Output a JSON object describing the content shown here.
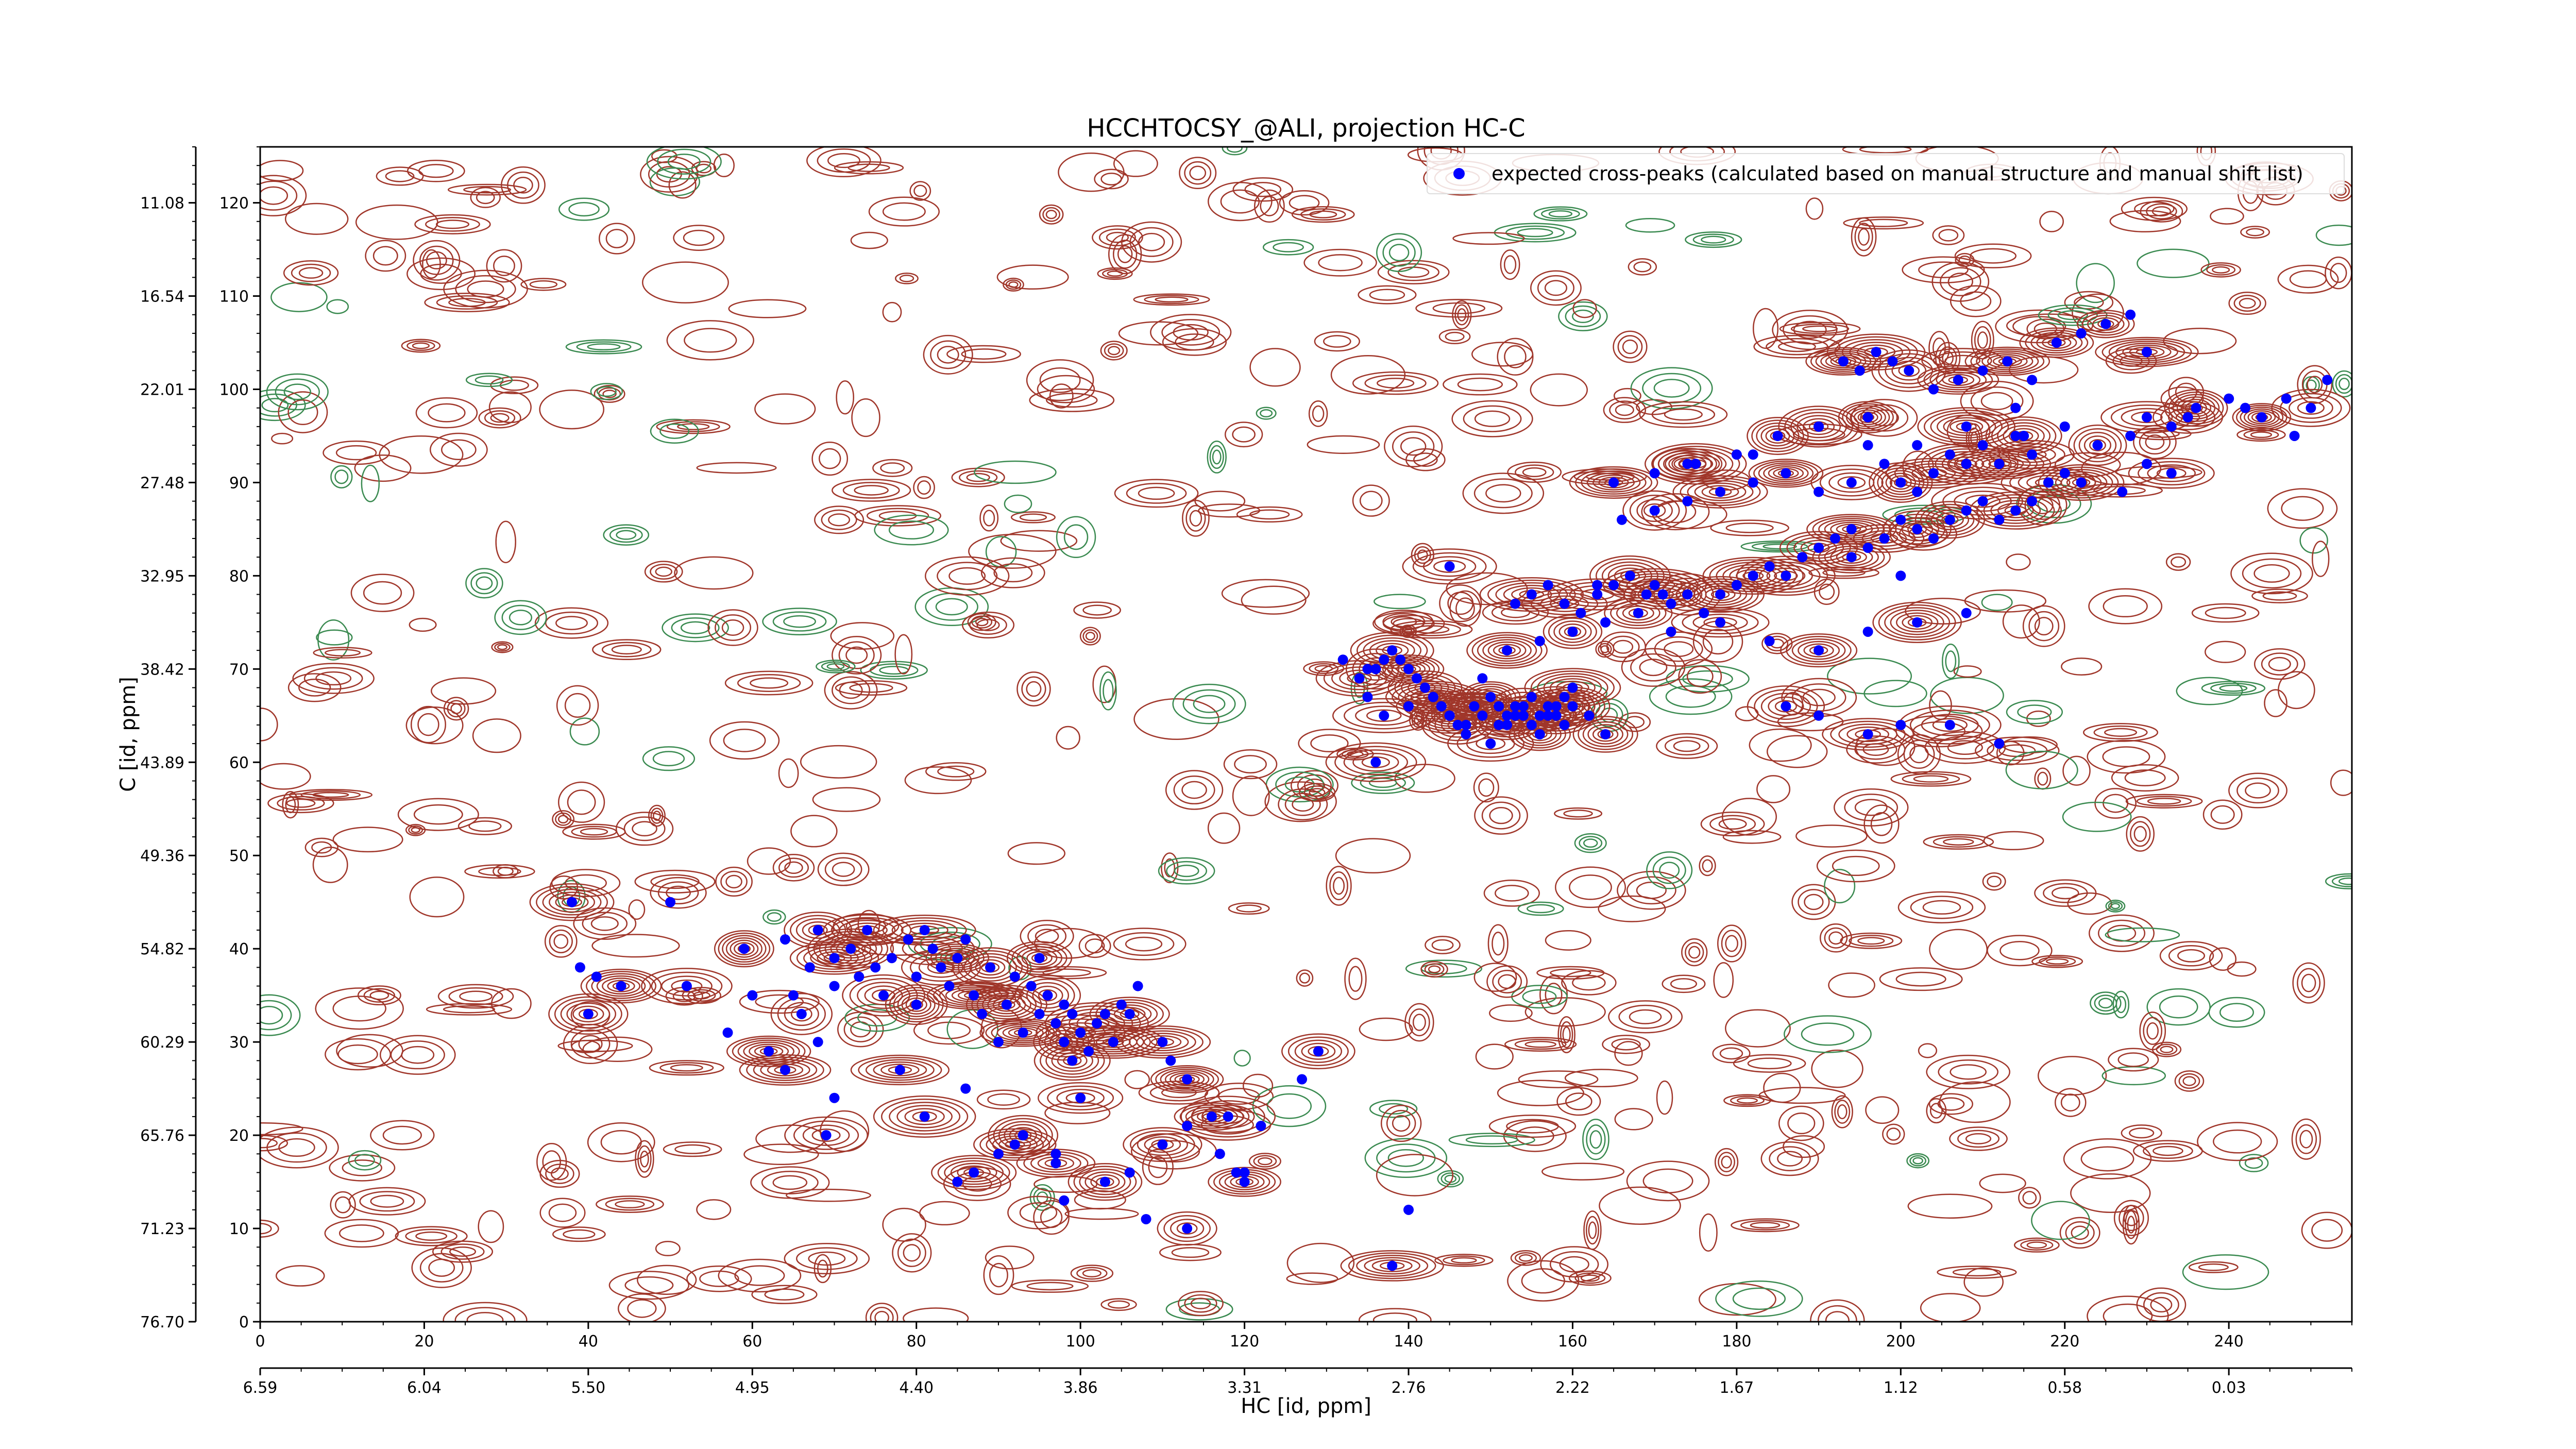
{
  "chart_data": {
    "type": "scatter",
    "title": "HCCHTOCSY_@ALI, projection HC-C",
    "xlabel": "HC [id, ppm]",
    "ylabel": "C [id, ppm]",
    "xlim": [
      0,
      255
    ],
    "ylim": [
      0,
      126
    ],
    "x_index_ticks": [
      "0",
      "20",
      "40",
      "60",
      "80",
      "100",
      "120",
      "140",
      "160",
      "180",
      "200",
      "220",
      "240"
    ],
    "x_ppm_ticks": [
      "6.59",
      "6.04",
      "5.50",
      "4.95",
      "4.40",
      "3.86",
      "3.31",
      "2.76",
      "2.22",
      "1.67",
      "1.12",
      "0.58",
      "0.03"
    ],
    "y_index_ticks": [
      "0",
      "10",
      "20",
      "30",
      "40",
      "50",
      "60",
      "70",
      "80",
      "90",
      "100",
      "110",
      "120"
    ],
    "y_ppm_ticks": [
      "76.70",
      "71.23",
      "65.76",
      "60.29",
      "54.82",
      "49.36",
      "43.89",
      "38.42",
      "32.95",
      "27.48",
      "22.01",
      "16.54",
      "11.08"
    ],
    "legend": {
      "label": "expected cross-peaks (calculated based on manual structure and manual shift list)",
      "position": "top-right"
    },
    "colors": {
      "peak": "#0000ff",
      "contour_positive": "#a0362a",
      "contour_negative": "#3a8a50"
    },
    "series": [
      {
        "name": "expected cross-peaks (calculated based on manual structure and manual shift list)",
        "x": [
          38,
          39,
          40,
          41,
          44,
          50,
          52,
          57,
          59,
          60,
          62,
          64,
          64,
          65,
          66,
          67,
          68,
          68,
          70,
          70,
          72,
          73,
          74,
          75,
          76,
          77,
          78,
          79,
          80,
          80,
          81,
          82,
          83,
          84,
          85,
          86,
          87,
          88,
          89,
          90,
          91,
          92,
          93,
          94,
          95,
          95,
          96,
          97,
          98,
          98,
          99,
          99,
          100,
          101,
          102,
          103,
          104,
          105,
          106,
          107,
          110,
          111,
          113,
          117,
          118,
          119,
          120,
          122,
          69,
          85,
          87,
          90,
          92,
          93,
          97,
          98,
          103,
          106,
          110,
          113,
          116,
          127,
          129,
          70,
          81,
          86,
          93,
          97,
          100,
          108,
          113,
          120,
          138,
          140,
          136,
          132,
          134,
          135,
          136,
          137,
          138,
          139,
          140,
          141,
          142,
          143,
          144,
          145,
          146,
          147,
          148,
          149,
          150,
          151,
          152,
          153,
          154,
          155,
          156,
          157,
          158,
          159,
          160,
          162,
          164,
          135,
          137,
          140,
          143,
          144,
          145,
          147,
          148,
          149,
          150,
          151,
          152,
          153,
          154,
          155,
          156,
          157,
          158,
          159,
          160,
          153,
          155,
          157,
          159,
          161,
          163,
          165,
          167,
          169,
          170,
          172,
          174,
          176,
          178,
          180,
          182,
          184,
          186,
          188,
          190,
          192,
          194,
          196,
          198,
          200,
          202,
          204,
          206,
          208,
          210,
          212,
          214,
          216,
          218,
          220,
          222,
          166,
          170,
          174,
          178,
          182,
          186,
          190,
          194,
          198,
          200,
          202,
          204,
          206,
          208,
          210,
          212,
          214,
          216,
          220,
          224,
          228,
          230,
          233,
          236,
          240,
          244,
          248,
          250,
          252,
          193,
          195,
          197,
          199,
          201,
          204,
          207,
          210,
          213,
          216,
          219,
          222,
          225,
          228,
          230,
          242,
          165,
          170,
          175,
          180,
          185,
          190,
          196,
          202,
          208,
          214,
          174,
          182,
          190,
          196,
          215,
          230,
          233,
          227,
          235,
          247,
          152,
          156,
          160,
          164,
          168,
          172,
          178,
          184,
          190,
          196,
          202,
          208,
          145,
          163,
          171,
          182,
          194,
          200,
          186,
          190,
          196,
          200,
          206,
          212
        ],
        "y": [
          45,
          38,
          33,
          37,
          36,
          45,
          36,
          31,
          40,
          35,
          29,
          41,
          27,
          35,
          33,
          38,
          42,
          30,
          39,
          36,
          40,
          37,
          42,
          38,
          35,
          39,
          27,
          41,
          34,
          37,
          42,
          40,
          38,
          36,
          39,
          41,
          35,
          33,
          38,
          30,
          34,
          37,
          31,
          36,
          39,
          33,
          35,
          32,
          30,
          34,
          28,
          33,
          31,
          29,
          32,
          33,
          30,
          34,
          33,
          36,
          30,
          28,
          26,
          18,
          22,
          16,
          15,
          21,
          20,
          15,
          16,
          18,
          19,
          20,
          17,
          13,
          15,
          16,
          19,
          21,
          22,
          26,
          29,
          24,
          22,
          25,
          20,
          18,
          24,
          11,
          10,
          16,
          6,
          12,
          60,
          71,
          69,
          70,
          70,
          71,
          72,
          71,
          70,
          69,
          68,
          67,
          66,
          65,
          64,
          63,
          66,
          69,
          62,
          64,
          65,
          66,
          65,
          64,
          63,
          65,
          66,
          67,
          68,
          65,
          63,
          67,
          65,
          66,
          67,
          66,
          65,
          64,
          66,
          65,
          67,
          66,
          64,
          65,
          66,
          67,
          65,
          66,
          65,
          64,
          66,
          77,
          78,
          79,
          77,
          76,
          78,
          79,
          80,
          78,
          79,
          77,
          78,
          76,
          78,
          79,
          80,
          81,
          80,
          82,
          83,
          84,
          85,
          83,
          84,
          86,
          85,
          84,
          86,
          87,
          88,
          86,
          87,
          88,
          90,
          91,
          90,
          86,
          87,
          88,
          89,
          90,
          91,
          89,
          90,
          92,
          90,
          89,
          91,
          93,
          92,
          94,
          92,
          95,
          93,
          96,
          94,
          95,
          97,
          96,
          98,
          99,
          97,
          95,
          98,
          101,
          103,
          102,
          104,
          103,
          102,
          100,
          101,
          102,
          103,
          101,
          105,
          106,
          107,
          108,
          104,
          98,
          90,
          91,
          92,
          93,
          95,
          96,
          97,
          94,
          96,
          98,
          92,
          93,
          96,
          94,
          95,
          92,
          91,
          89,
          97,
          99,
          72,
          73,
          74,
          75,
          76,
          74,
          75,
          73,
          72,
          74,
          75,
          76,
          81,
          79,
          78,
          80,
          82,
          80,
          66,
          65,
          63,
          64,
          64,
          62
        ],
        "shape": "circle-marker"
      }
    ]
  }
}
